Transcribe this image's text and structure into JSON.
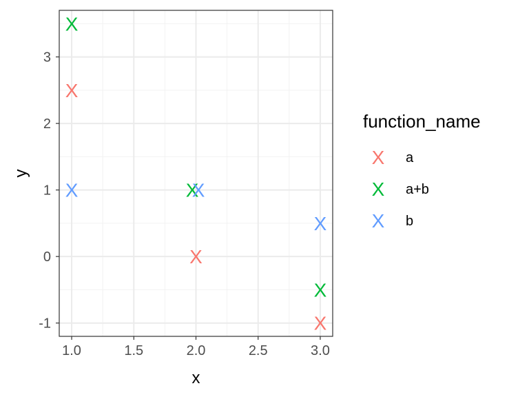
{
  "chart_data": {
    "type": "scatter",
    "xlabel": "x",
    "ylabel": "y",
    "xlim": [
      0.9,
      3.1
    ],
    "ylim": [
      -1.2,
      3.7
    ],
    "x_ticks": [
      1.0,
      1.5,
      2.0,
      2.5,
      3.0
    ],
    "x_tick_labels": [
      "1.0",
      "1.5",
      "2.0",
      "2.5",
      "3.0"
    ],
    "y_ticks": [
      -1,
      0,
      1,
      2,
      3
    ],
    "y_tick_labels": [
      "-1",
      "0",
      "1",
      "2",
      "3"
    ],
    "grid": true,
    "marker": "X",
    "legend": {
      "title": "function_name",
      "placement": "right"
    },
    "series": [
      {
        "name": "a",
        "color": "#F8766D",
        "points": [
          [
            1.0,
            2.5
          ],
          [
            2.0,
            0.0
          ],
          [
            3.0,
            -1.0
          ]
        ]
      },
      {
        "name": "a+b",
        "color": "#00BA38",
        "points": [
          [
            1.0,
            3.5
          ],
          [
            1.97,
            1.0
          ],
          [
            3.0,
            -0.5
          ]
        ]
      },
      {
        "name": "b",
        "color": "#619CFF",
        "points": [
          [
            1.0,
            1.0
          ],
          [
            2.02,
            1.0
          ],
          [
            3.0,
            0.5
          ]
        ]
      }
    ]
  }
}
